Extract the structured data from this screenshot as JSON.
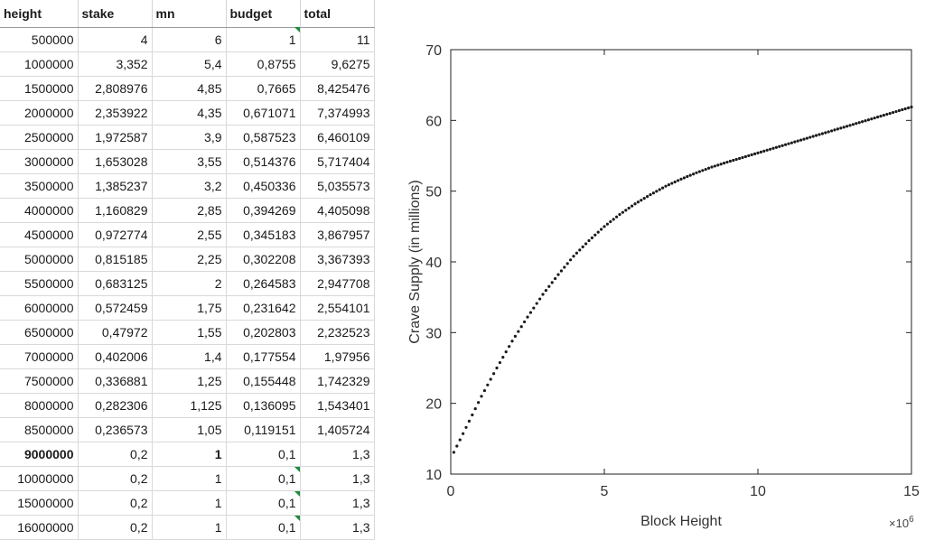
{
  "table": {
    "columns": [
      "height",
      "stake",
      "mn",
      "budget",
      "total"
    ],
    "rows": [
      [
        "500000",
        "4",
        "6",
        "1",
        "11"
      ],
      [
        "1000000",
        "3,352",
        "5,4",
        "0,8755",
        "9,6275"
      ],
      [
        "1500000",
        "2,808976",
        "4,85",
        "0,7665",
        "8,425476"
      ],
      [
        "2000000",
        "2,353922",
        "4,35",
        "0,671071",
        "7,374993"
      ],
      [
        "2500000",
        "1,972587",
        "3,9",
        "0,587523",
        "6,460109"
      ],
      [
        "3000000",
        "1,653028",
        "3,55",
        "0,514376",
        "5,717404"
      ],
      [
        "3500000",
        "1,385237",
        "3,2",
        "0,450336",
        "5,035573"
      ],
      [
        "4000000",
        "1,160829",
        "2,85",
        "0,394269",
        "4,405098"
      ],
      [
        "4500000",
        "0,972774",
        "2,55",
        "0,345183",
        "3,867957"
      ],
      [
        "5000000",
        "0,815185",
        "2,25",
        "0,302208",
        "3,367393"
      ],
      [
        "5500000",
        "0,683125",
        "2",
        "0,264583",
        "2,947708"
      ],
      [
        "6000000",
        "0,572459",
        "1,75",
        "0,231642",
        "2,554101"
      ],
      [
        "6500000",
        "0,47972",
        "1,55",
        "0,202803",
        "2,232523"
      ],
      [
        "7000000",
        "0,402006",
        "1,4",
        "0,177554",
        "1,97956"
      ],
      [
        "7500000",
        "0,336881",
        "1,25",
        "0,155448",
        "1,742329"
      ],
      [
        "8000000",
        "0,282306",
        "1,125",
        "0,136095",
        "1,543401"
      ],
      [
        "8500000",
        "0,236573",
        "1,05",
        "0,119151",
        "1,405724"
      ],
      [
        "9000000",
        "0,2",
        "1",
        "0,1",
        "1,3"
      ],
      [
        "10000000",
        "0,2",
        "1",
        "0,1",
        "1,3"
      ],
      [
        "15000000",
        "0,2",
        "1",
        "0,1",
        "1,3"
      ],
      [
        "16000000",
        "0,2",
        "1",
        "0,1",
        "1,3"
      ]
    ],
    "bold_row": 17,
    "marked_rows": [
      18,
      19,
      20
    ],
    "marker_color": "#1e8a3c"
  },
  "chart_data": {
    "type": "scatter",
    "xlabel": "Block Height",
    "ylabel": "Crave Supply (in millions)",
    "x_exponent_label": "×10",
    "x_exponent": "6",
    "xlim": [
      0,
      15
    ],
    "ylim": [
      10,
      70
    ],
    "xticks": [
      "0",
      "5",
      "10",
      "15"
    ],
    "yticks": [
      "10",
      "20",
      "30",
      "40",
      "50",
      "60",
      "70"
    ],
    "grid": false,
    "marker_color": "#1a1a1a",
    "curve_x": [
      0.5,
      1,
      1.5,
      2,
      2.5,
      3,
      3.5,
      4,
      4.5,
      5,
      5.5,
      6,
      6.5,
      7,
      7.5,
      8,
      8.5,
      9,
      10,
      11,
      12,
      13,
      14,
      15
    ],
    "curve_y": [
      16.6,
      21.0,
      25.0,
      28.8,
      32.2,
      35.4,
      38.2,
      40.8,
      43.0,
      45.0,
      46.7,
      48.2,
      49.5,
      50.7,
      51.7,
      52.6,
      53.4,
      54.1,
      55.4,
      56.7,
      58.0,
      59.3,
      60.6,
      61.9
    ],
    "x_start": 0.1,
    "x_step": 0.1
  }
}
